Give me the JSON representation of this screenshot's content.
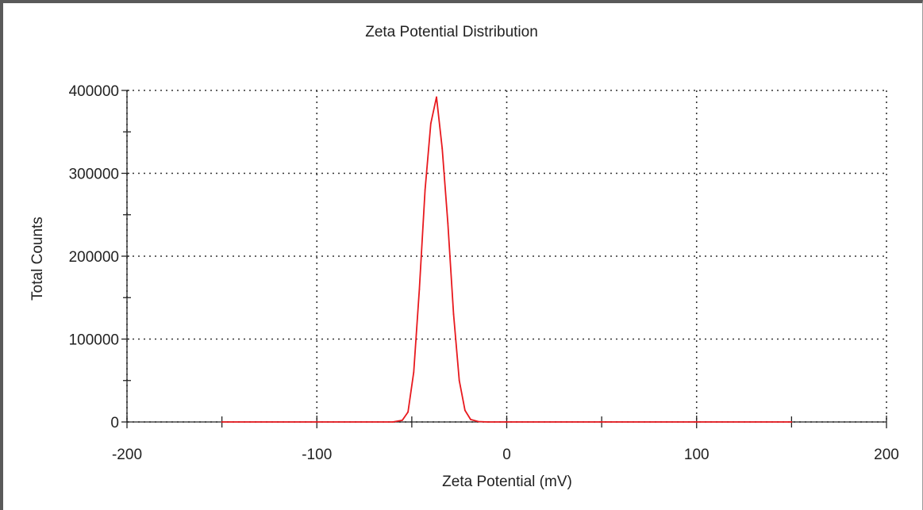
{
  "chart_data": {
    "type": "line",
    "title": "Zeta Potential Distribution",
    "xlabel": "Zeta Potential (mV)",
    "ylabel": "Total Counts",
    "xlim": [
      -200,
      200
    ],
    "ylim": [
      0,
      400000
    ],
    "xticks": [
      -200,
      -100,
      0,
      100,
      200
    ],
    "yticks": [
      0,
      100000,
      200000,
      300000,
      400000
    ],
    "x_minor_ticks": [
      -150,
      -50,
      50,
      150
    ],
    "y_minor_ticks": [
      50000,
      150000,
      250000,
      350000
    ],
    "grid": true,
    "grid_style": "dotted",
    "legend": "none",
    "series": [
      {
        "color": "#e8191e",
        "x": [
          -150,
          -100,
          -60,
          -55,
          -52,
          -49,
          -46,
          -43,
          -40,
          -37,
          -34,
          -31,
          -28,
          -25,
          -22,
          -19,
          -15,
          -10,
          0,
          50,
          100,
          150
        ],
        "y": [
          0,
          0,
          0,
          2000,
          12000,
          60000,
          160000,
          280000,
          360000,
          392000,
          330000,
          240000,
          130000,
          50000,
          14000,
          3000,
          500,
          0,
          0,
          0,
          0,
          0
        ]
      }
    ]
  }
}
